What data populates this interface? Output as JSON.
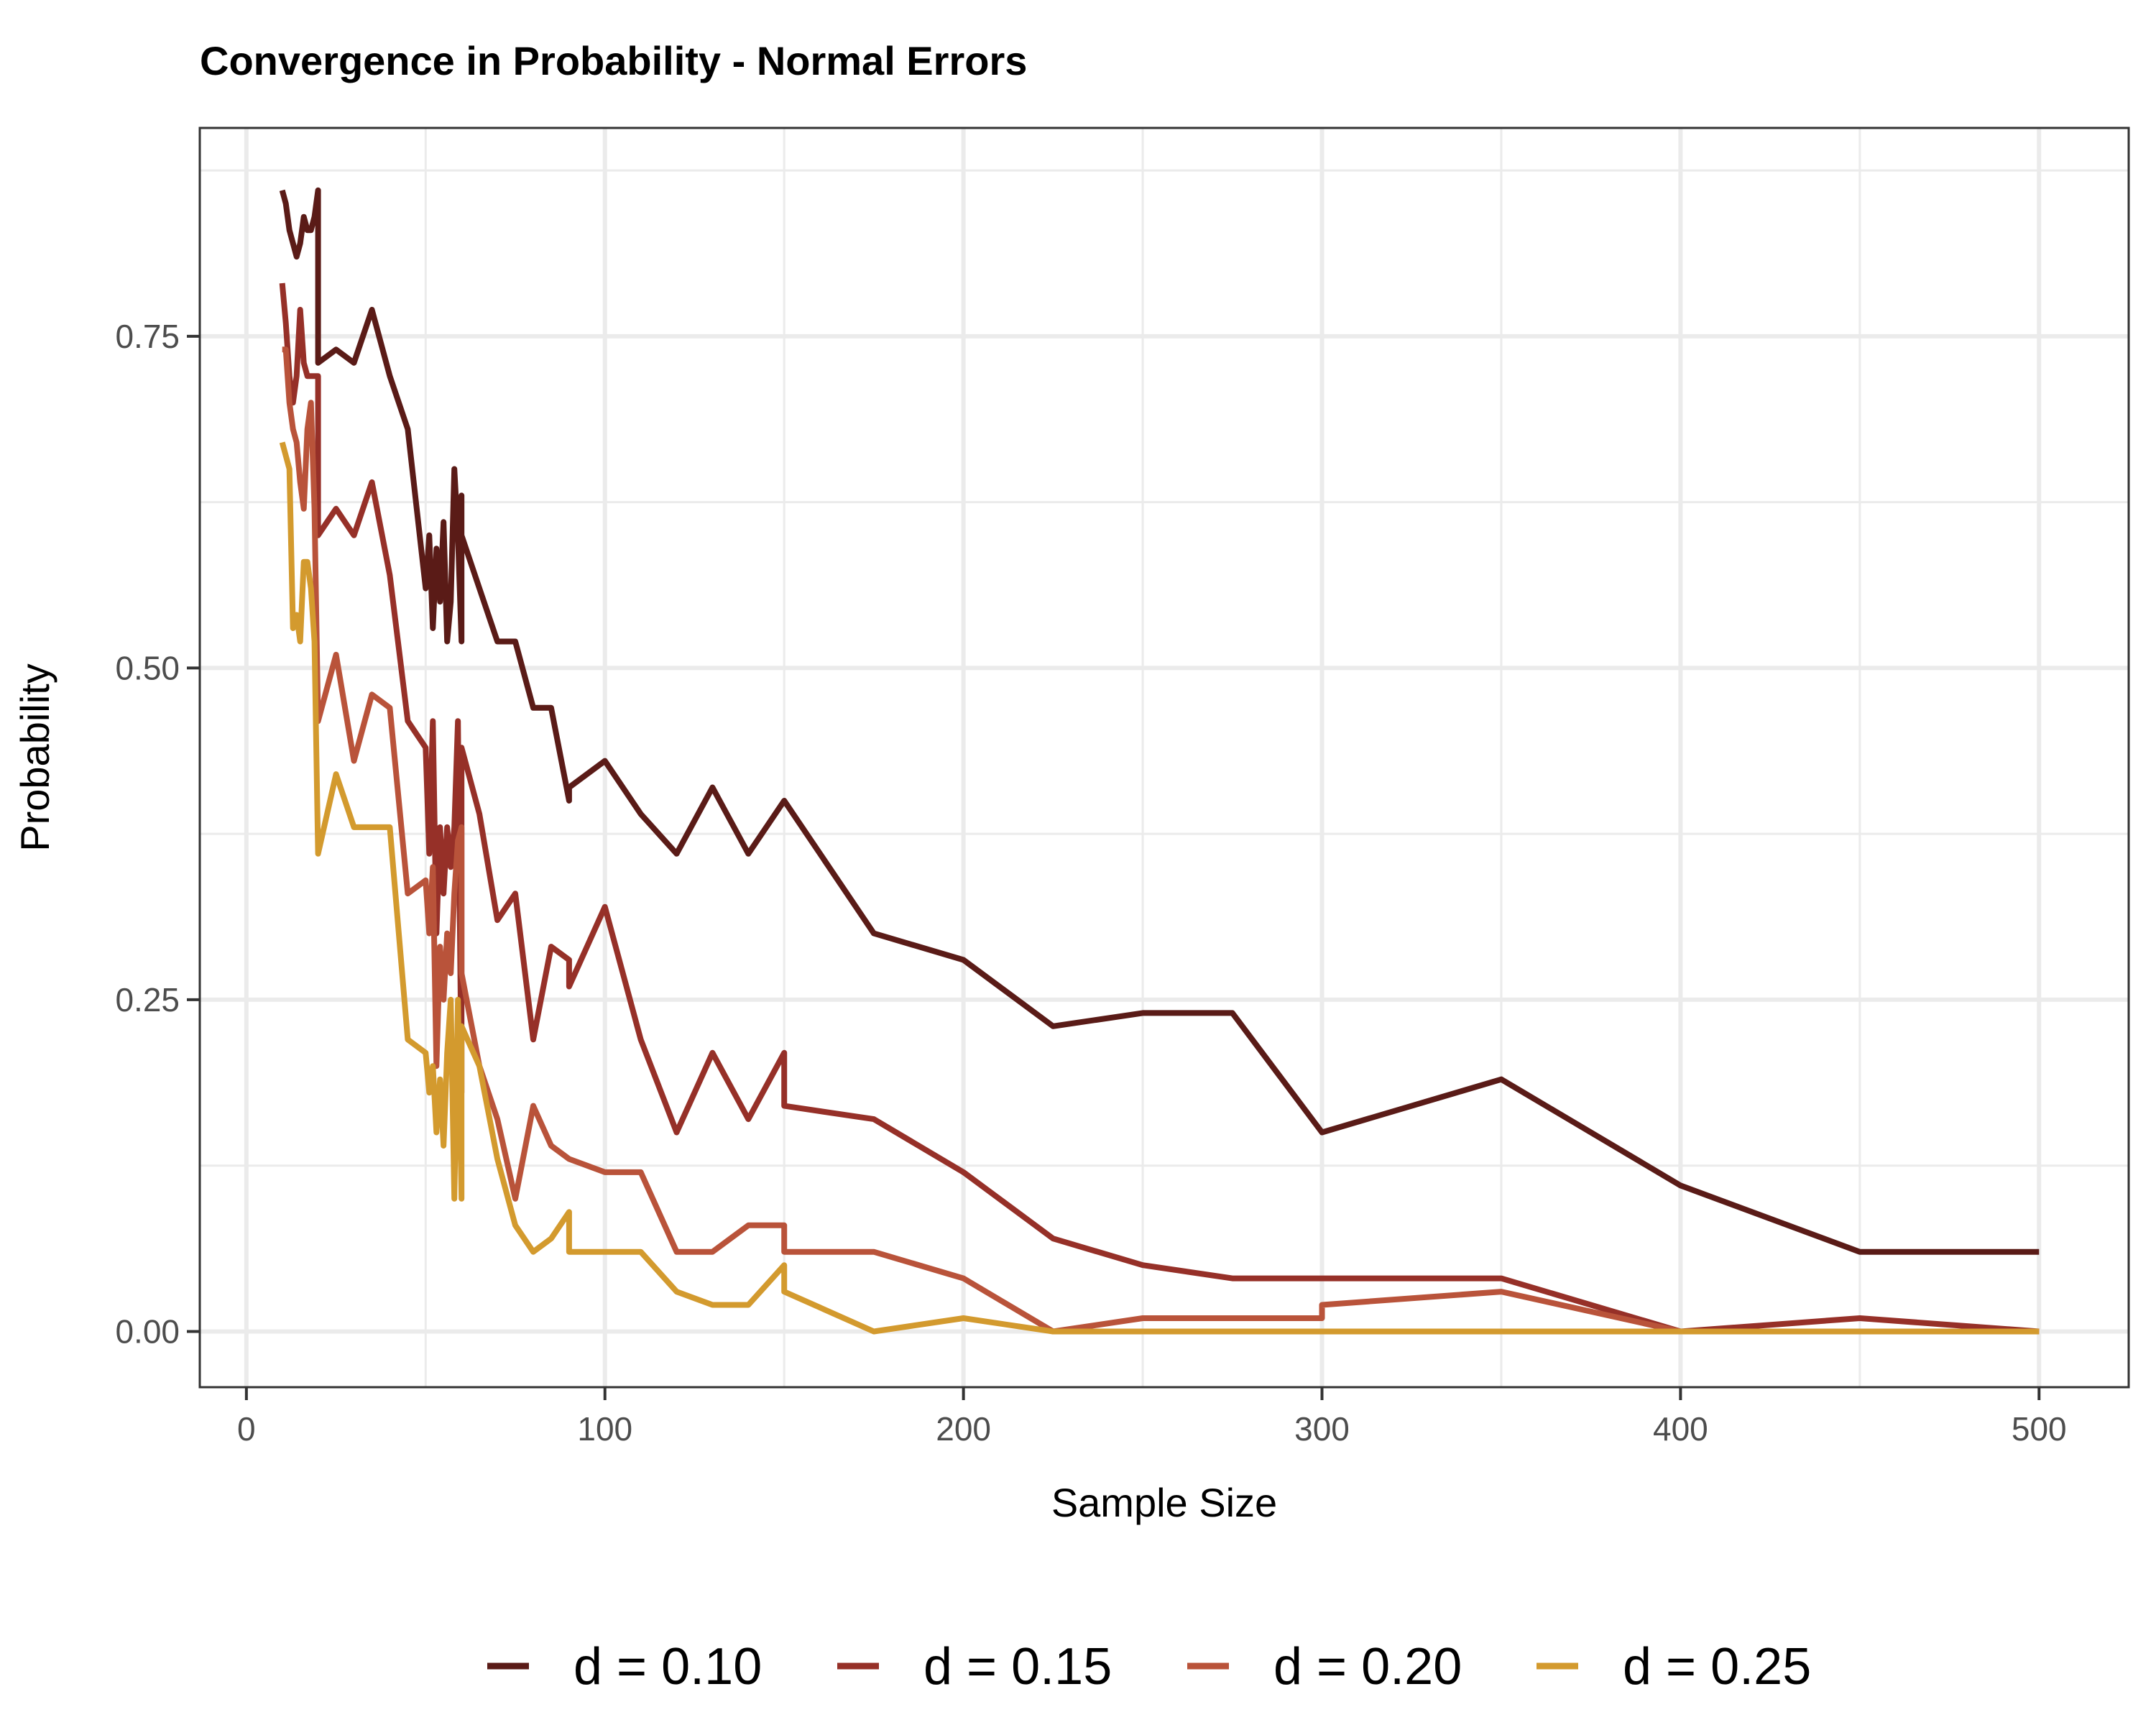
{
  "chart_data": {
    "type": "line",
    "title": "Convergence in Probability - Normal Errors",
    "xlabel": "Sample Size",
    "ylabel": "Probability",
    "xlim": [
      -13,
      525
    ],
    "ylim": [
      -0.042,
      0.907
    ],
    "x_ticks": [
      0,
      100,
      200,
      300,
      400,
      500
    ],
    "x_tick_labels": [
      "0",
      "100",
      "200",
      "300",
      "400",
      "500"
    ],
    "y_ticks": [
      0,
      0.25,
      0.5,
      0.75
    ],
    "y_tick_labels": [
      "0.00",
      "0.25",
      "0.50",
      "0.75"
    ],
    "grid": true,
    "legend_position": "bottom",
    "series": [
      {
        "name": "d = 0.10",
        "color": "#5a1b17",
        "points": [
          [
            10,
            0.86
          ],
          [
            11,
            0.85
          ],
          [
            12,
            0.83
          ],
          [
            14,
            0.81
          ],
          [
            15,
            0.82
          ],
          [
            16,
            0.84
          ],
          [
            17,
            0.83
          ],
          [
            18,
            0.83
          ],
          [
            19,
            0.84
          ],
          [
            20,
            0.86
          ],
          [
            20,
            0.73
          ],
          [
            25,
            0.74
          ],
          [
            30,
            0.73
          ],
          [
            35,
            0.77
          ],
          [
            40,
            0.72
          ],
          [
            45,
            0.68
          ],
          [
            50,
            0.56
          ],
          [
            51,
            0.6
          ],
          [
            52,
            0.53
          ],
          [
            53,
            0.59
          ],
          [
            54,
            0.55
          ],
          [
            55,
            0.61
          ],
          [
            56,
            0.52
          ],
          [
            57,
            0.55
          ],
          [
            58,
            0.65
          ],
          [
            59,
            0.6
          ],
          [
            60,
            0.52
          ],
          [
            60,
            0.63
          ],
          [
            60,
            0.6
          ],
          [
            65,
            0.56
          ],
          [
            70,
            0.52
          ],
          [
            75,
            0.52
          ],
          [
            80,
            0.47
          ],
          [
            85,
            0.47
          ],
          [
            90,
            0.4
          ],
          [
            90,
            0.41
          ],
          [
            100,
            0.43
          ],
          [
            110,
            0.39
          ],
          [
            120,
            0.36
          ],
          [
            130,
            0.41
          ],
          [
            140,
            0.36
          ],
          [
            150,
            0.4
          ],
          [
            175,
            0.3
          ],
          [
            200,
            0.28
          ],
          [
            225,
            0.23
          ],
          [
            250,
            0.24
          ],
          [
            275,
            0.24
          ],
          [
            300,
            0.15
          ],
          [
            350,
            0.19
          ],
          [
            400,
            0.11
          ],
          [
            450,
            0.06
          ],
          [
            500,
            0.06
          ]
        ]
      },
      {
        "name": "d = 0.15",
        "color": "#963028",
        "points": [
          [
            10,
            0.79
          ],
          [
            11,
            0.76
          ],
          [
            12,
            0.72
          ],
          [
            13,
            0.7
          ],
          [
            14,
            0.72
          ],
          [
            15,
            0.77
          ],
          [
            16,
            0.73
          ],
          [
            17,
            0.72
          ],
          [
            18,
            0.72
          ],
          [
            19,
            0.72
          ],
          [
            20,
            0.72
          ],
          [
            20,
            0.6
          ],
          [
            25,
            0.62
          ],
          [
            30,
            0.6
          ],
          [
            35,
            0.64
          ],
          [
            40,
            0.57
          ],
          [
            45,
            0.46
          ],
          [
            50,
            0.44
          ],
          [
            51,
            0.36
          ],
          [
            52,
            0.46
          ],
          [
            53,
            0.3
          ],
          [
            54,
            0.38
          ],
          [
            55,
            0.33
          ],
          [
            56,
            0.38
          ],
          [
            57,
            0.35
          ],
          [
            58,
            0.38
          ],
          [
            59,
            0.46
          ],
          [
            60,
            0.18
          ],
          [
            60,
            0.44
          ],
          [
            65,
            0.39
          ],
          [
            70,
            0.31
          ],
          [
            75,
            0.33
          ],
          [
            80,
            0.22
          ],
          [
            85,
            0.29
          ],
          [
            90,
            0.28
          ],
          [
            90,
            0.26
          ],
          [
            100,
            0.32
          ],
          [
            110,
            0.22
          ],
          [
            120,
            0.15
          ],
          [
            130,
            0.21
          ],
          [
            140,
            0.16
          ],
          [
            150,
            0.21
          ],
          [
            150,
            0.17
          ],
          [
            175,
            0.16
          ],
          [
            200,
            0.12
          ],
          [
            225,
            0.07
          ],
          [
            250,
            0.05
          ],
          [
            275,
            0.04
          ],
          [
            300,
            0.04
          ],
          [
            350,
            0.04
          ],
          [
            400,
            0.0
          ],
          [
            450,
            0.01
          ],
          [
            500,
            0.0
          ]
        ]
      },
      {
        "name": "d = 0.20",
        "color": "#b9533a",
        "points": [
          [
            10,
            0.74
          ],
          [
            11,
            0.74
          ],
          [
            12,
            0.7
          ],
          [
            13,
            0.68
          ],
          [
            14,
            0.67
          ],
          [
            15,
            0.64
          ],
          [
            16,
            0.62
          ],
          [
            17,
            0.68
          ],
          [
            18,
            0.7
          ],
          [
            19,
            0.62
          ],
          [
            20,
            0.46
          ],
          [
            25,
            0.51
          ],
          [
            30,
            0.43
          ],
          [
            35,
            0.48
          ],
          [
            40,
            0.47
          ],
          [
            45,
            0.33
          ],
          [
            50,
            0.34
          ],
          [
            51,
            0.3
          ],
          [
            52,
            0.35
          ],
          [
            53,
            0.2
          ],
          [
            54,
            0.29
          ],
          [
            55,
            0.25
          ],
          [
            56,
            0.3
          ],
          [
            57,
            0.27
          ],
          [
            58,
            0.33
          ],
          [
            59,
            0.37
          ],
          [
            60,
            0.38
          ],
          [
            60,
            0.27
          ],
          [
            65,
            0.2
          ],
          [
            70,
            0.16
          ],
          [
            75,
            0.1
          ],
          [
            80,
            0.17
          ],
          [
            85,
            0.14
          ],
          [
            90,
            0.13
          ],
          [
            100,
            0.12
          ],
          [
            110,
            0.12
          ],
          [
            120,
            0.06
          ],
          [
            130,
            0.06
          ],
          [
            140,
            0.08
          ],
          [
            150,
            0.08
          ],
          [
            150,
            0.06
          ],
          [
            175,
            0.06
          ],
          [
            200,
            0.04
          ],
          [
            225,
            0.0
          ],
          [
            250,
            0.01
          ],
          [
            275,
            0.01
          ],
          [
            300,
            0.01
          ],
          [
            300,
            0.02
          ],
          [
            350,
            0.03
          ],
          [
            400,
            0.0
          ],
          [
            450,
            0.0
          ],
          [
            500,
            0.0
          ]
        ]
      },
      {
        "name": "d = 0.25",
        "color": "#d39a2e",
        "points": [
          [
            10,
            0.67
          ],
          [
            11,
            0.66
          ],
          [
            12,
            0.65
          ],
          [
            13,
            0.53
          ],
          [
            14,
            0.54
          ],
          [
            15,
            0.52
          ],
          [
            16,
            0.58
          ],
          [
            17,
            0.58
          ],
          [
            18,
            0.56
          ],
          [
            19,
            0.52
          ],
          [
            20,
            0.36
          ],
          [
            25,
            0.42
          ],
          [
            30,
            0.38
          ],
          [
            35,
            0.38
          ],
          [
            40,
            0.38
          ],
          [
            45,
            0.22
          ],
          [
            50,
            0.21
          ],
          [
            51,
            0.18
          ],
          [
            52,
            0.2
          ],
          [
            53,
            0.15
          ],
          [
            54,
            0.19
          ],
          [
            55,
            0.14
          ],
          [
            56,
            0.21
          ],
          [
            57,
            0.25
          ],
          [
            58,
            0.1
          ],
          [
            59,
            0.25
          ],
          [
            60,
            0.1
          ],
          [
            60,
            0.23
          ],
          [
            65,
            0.2
          ],
          [
            70,
            0.13
          ],
          [
            75,
            0.08
          ],
          [
            80,
            0.06
          ],
          [
            85,
            0.07
          ],
          [
            90,
            0.09
          ],
          [
            90,
            0.06
          ],
          [
            100,
            0.06
          ],
          [
            110,
            0.06
          ],
          [
            120,
            0.03
          ],
          [
            130,
            0.02
          ],
          [
            140,
            0.02
          ],
          [
            150,
            0.05
          ],
          [
            150,
            0.03
          ],
          [
            175,
            0.0
          ],
          [
            200,
            0.01
          ],
          [
            225,
            0.0
          ],
          [
            250,
            0.0
          ],
          [
            300,
            0.0
          ],
          [
            350,
            0.0
          ],
          [
            400,
            0.0
          ],
          [
            450,
            0.0
          ],
          [
            500,
            0.0
          ]
        ]
      }
    ]
  }
}
